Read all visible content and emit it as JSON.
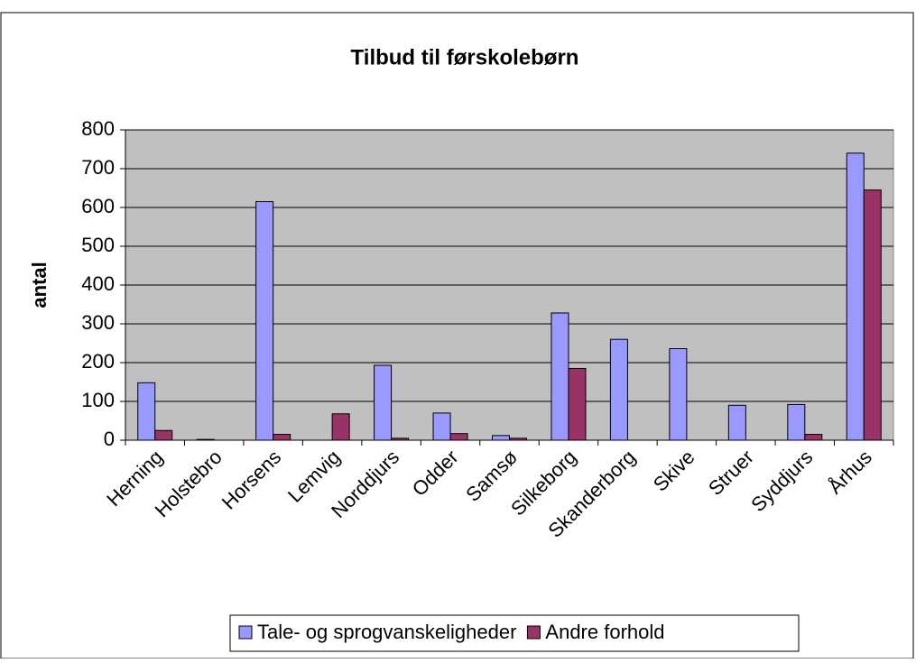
{
  "chart_data": {
    "type": "bar",
    "title": "Tilbud til førskolebørn",
    "y_label": "antal",
    "categories": [
      "Herning",
      "Holstebro",
      "Horsens",
      "Lemvig",
      "Norddjurs",
      "Odder",
      "Samsø",
      "Silkeborg",
      "Skanderborg",
      "Skive",
      "Struer",
      "Syddjurs",
      "Århus"
    ],
    "series": [
      {
        "name": "Tale- og sprogvanskeligheder",
        "color": "#9999ff",
        "values": [
          148,
          2,
          615,
          0,
          193,
          70,
          12,
          328,
          260,
          236,
          90,
          92,
          740
        ]
      },
      {
        "name": "Andre forhold",
        "color": "#993366",
        "values": [
          25,
          0,
          15,
          68,
          5,
          17,
          5,
          185,
          0,
          0,
          0,
          15,
          645
        ]
      }
    ],
    "ylim": [
      0,
      800
    ],
    "yticks": [
      0,
      100,
      200,
      300,
      400,
      500,
      600,
      700,
      800
    ],
    "grid": true,
    "legend": "bottom"
  }
}
